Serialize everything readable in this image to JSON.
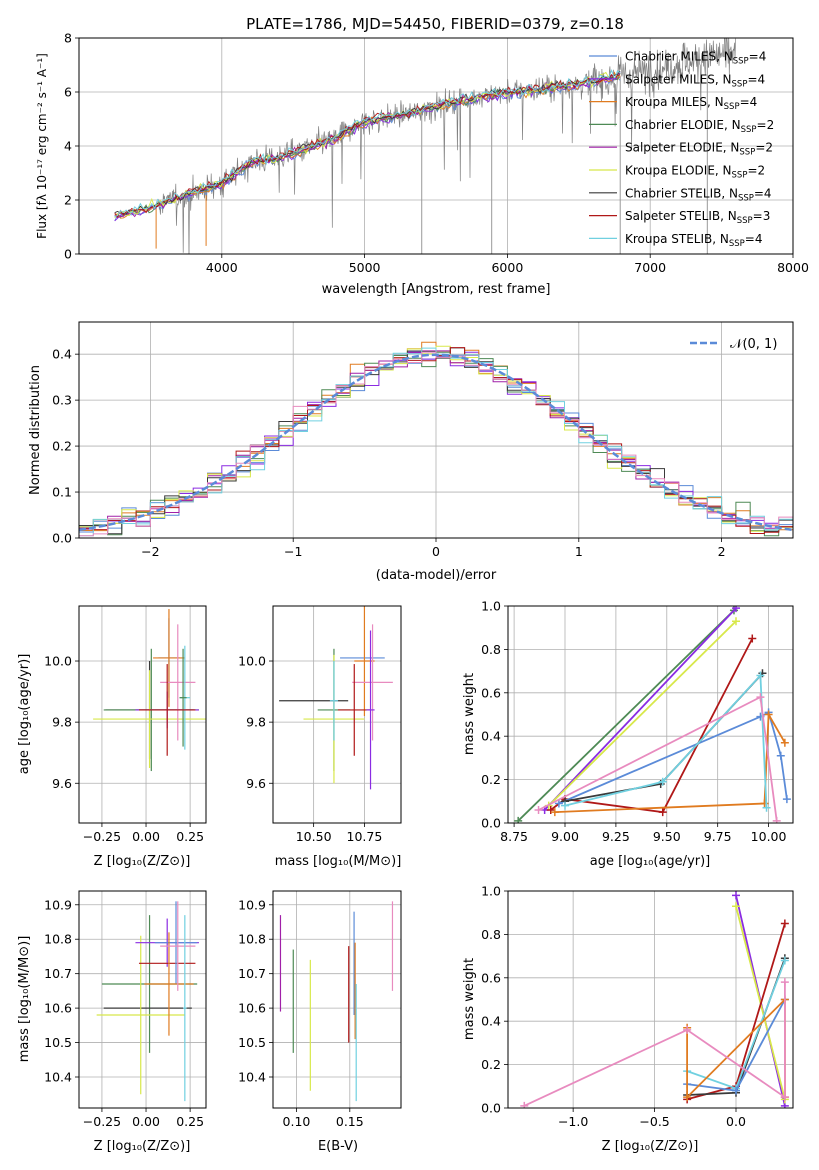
{
  "colors": {
    "miles_chabrier": "#5b8bd8",
    "miles_salpeter": "#8a2be2",
    "miles_kroupa": "#e07b20",
    "elodie_chabrier": "#4e8a55",
    "elodie_salpeter": "#a020a8",
    "elodie_kroupa": "#d8e84a",
    "stelib_chabrier": "#3a3a3a",
    "stelib_salpeter": "#b01818",
    "stelib_kroupa": "#70d0e0",
    "data_spectrum": "#808080",
    "normal": "#5b8bd8",
    "pink": "#e88bbf"
  },
  "chart_data": [
    {
      "id": "spectrum",
      "type": "line",
      "title": "PLATE=1786, MJD=54450, FIBERID=0379, z=0.18",
      "xlabel": "wavelength [Angstrom, rest frame]",
      "ylabel": "Flux [fλ 10⁻¹⁷ erg cm⁻² s⁻¹ A⁻¹]",
      "xlim": [
        3000,
        8000
      ],
      "ylim": [
        0,
        8
      ],
      "xticks": [
        "4000",
        "5000",
        "6000",
        "7000",
        "8000"
      ],
      "yticks": [
        "0",
        "2",
        "4",
        "6",
        "8"
      ],
      "legend_position": "right",
      "legend": [
        {
          "label": "Chabrier MILES, N",
          "sub": "SSP",
          "suffix": "=4",
          "color": "#5b8bd8"
        },
        {
          "label": "Salpeter MILES, N",
          "sub": "SSP",
          "suffix": "=4",
          "color": "#8a2be2"
        },
        {
          "label": "Kroupa MILES, N",
          "sub": "SSP",
          "suffix": "=4",
          "color": "#e07b20"
        },
        {
          "label": "Chabrier ELODIE, N",
          "sub": "SSP",
          "suffix": "=2",
          "color": "#4e8a55"
        },
        {
          "label": "Salpeter ELODIE, N",
          "sub": "SSP",
          "suffix": "=2",
          "color": "#a020a8"
        },
        {
          "label": "Kroupa ELODIE, N",
          "sub": "SSP",
          "suffix": "=2",
          "color": "#d8e84a"
        },
        {
          "label": "Chabrier STELIB, N",
          "sub": "SSP",
          "suffix": "=4",
          "color": "#3a3a3a"
        },
        {
          "label": "Salpeter STELIB, N",
          "sub": "SSP",
          "suffix": "=3",
          "color": "#b01818"
        },
        {
          "label": "Kroupa STELIB, N",
          "sub": "SSP",
          "suffix": "=4",
          "color": "#70d0e0"
        }
      ],
      "continuum": [
        [
          3250,
          1.4
        ],
        [
          3500,
          1.7
        ],
        [
          3800,
          2.3
        ],
        [
          4000,
          2.6
        ],
        [
          4200,
          3.4
        ],
        [
          4500,
          3.7
        ],
        [
          4800,
          4.3
        ],
        [
          5000,
          4.9
        ],
        [
          5300,
          5.2
        ],
        [
          5600,
          5.6
        ],
        [
          5900,
          5.9
        ],
        [
          6200,
          6.1
        ],
        [
          6500,
          6.3
        ],
        [
          6800,
          6.6
        ],
        [
          7100,
          6.9
        ],
        [
          7400,
          7.3
        ],
        [
          7600,
          7.5
        ]
      ]
    },
    {
      "id": "residuals",
      "type": "histogram",
      "xlabel": "(data-model)/error",
      "ylabel": "Normed distribution",
      "xlim": [
        -2.5,
        2.5
      ],
      "ylim": [
        0,
        0.47
      ],
      "xticks": [
        "−2",
        "−1",
        "0",
        "1",
        "2"
      ],
      "yticks": [
        "0.0",
        "0.1",
        "0.2",
        "0.3",
        "0.4"
      ],
      "legend_position": "top-right",
      "legend": "𝒩(0, 1)",
      "bin_width": 0.1
    },
    {
      "id": "z-age",
      "type": "errorbar",
      "xlabel": "Z [log₁₀(Z/Z⊙)]",
      "ylabel": "age  [log₁₀(age/yr)]",
      "xlim": [
        -0.38,
        0.34
      ],
      "ylim": [
        9.47,
        10.18
      ],
      "xticks": [
        "−0.25",
        "0.00",
        "0.25"
      ],
      "yticks": [
        "9.6",
        "9.8",
        "10.0"
      ],
      "points": [
        {
          "x": 0.02,
          "y": 9.84,
          "xerr": 0.25,
          "yerr": 0.16,
          "color": "#3a3a3a"
        },
        {
          "x": 0.03,
          "y": 9.84,
          "xerr": 0.27,
          "yerr": 0.2,
          "color": "#4e8a55"
        },
        {
          "x": 0.02,
          "y": 9.81,
          "xerr": 0.32,
          "yerr": 0.16,
          "color": "#d8e84a"
        },
        {
          "x": 0.13,
          "y": 10.01,
          "xerr": 0.06,
          "yerr": 0.13,
          "color": "#5b8bd8"
        },
        {
          "x": 0.13,
          "y": 10.01,
          "xerr": 0.09,
          "yerr": 0.16,
          "color": "#e07b20"
        },
        {
          "x": 0.18,
          "y": 9.93,
          "xerr": 0.1,
          "yerr": 0.19,
          "color": "#e88bbf"
        },
        {
          "x": 0.22,
          "y": 9.88,
          "xerr": 0.03,
          "yerr": 0.17,
          "color": "#70d0e0"
        },
        {
          "x": 0.21,
          "y": 9.88,
          "xerr": 0.02,
          "yerr": 0.16,
          "color": "#4e8a55"
        },
        {
          "x": 0.12,
          "y": 9.84,
          "xerr": 0.18,
          "yerr": 0.06,
          "color": "#8a2be2"
        },
        {
          "x": 0.12,
          "y": 9.84,
          "xerr": 0.16,
          "yerr": 0.15,
          "color": "#b01818"
        }
      ]
    },
    {
      "id": "mass-age",
      "type": "errorbar",
      "xlabel": "mass [log₁₀(M/M⊙)]",
      "ylabel": "",
      "xlim": [
        10.3,
        10.93
      ],
      "ylim": [
        9.47,
        10.18
      ],
      "xticks": [
        "10.50",
        "10.75"
      ],
      "yticks": [
        "9.6",
        "9.8",
        "10.0"
      ],
      "points": [
        {
          "x": 10.5,
          "y": 9.87,
          "xerr": 0.17,
          "yerr": 0.0,
          "color": "#3a3a3a"
        },
        {
          "x": 10.6,
          "y": 9.84,
          "xerr": 0.08,
          "yerr": 0.2,
          "color": "#4e8a55"
        },
        {
          "x": 10.6,
          "y": 9.81,
          "xerr": 0.15,
          "yerr": 0.21,
          "color": "#d8e84a"
        },
        {
          "x": 10.74,
          "y": 10.01,
          "xerr": 0.11,
          "yerr": 0.0,
          "color": "#5b8bd8"
        },
        {
          "x": 10.75,
          "y": 10.0,
          "xerr": 0.05,
          "yerr": 0.18,
          "color": "#e07b20"
        },
        {
          "x": 10.79,
          "y": 9.93,
          "xerr": 0.1,
          "yerr": 0.19,
          "color": "#e88bbf"
        },
        {
          "x": 10.7,
          "y": 9.84,
          "xerr": 0.08,
          "yerr": 0.15,
          "color": "#b01818"
        },
        {
          "x": 10.78,
          "y": 9.84,
          "xerr": 0.02,
          "yerr": 0.26,
          "color": "#8a2be2"
        },
        {
          "x": 10.6,
          "y": 9.87,
          "xerr": 0.02,
          "yerr": 0.13,
          "color": "#70d0e0"
        }
      ]
    },
    {
      "id": "age-weight",
      "type": "line",
      "xlabel": "age  [log₁₀(age/yr)]",
      "ylabel": "mass weight",
      "xlim": [
        8.72,
        10.12
      ],
      "ylim": [
        0,
        1
      ],
      "xticks": [
        "8.75",
        "9.00",
        "9.25",
        "9.50",
        "9.75",
        "10.00"
      ],
      "yticks": [
        "0.0",
        "0.2",
        "0.4",
        "0.6",
        "0.8",
        "1.0"
      ],
      "series": [
        {
          "color": "#4e8a55",
          "points": [
            [
              8.77,
              0.01
            ],
            [
              9.83,
              0.98
            ]
          ]
        },
        {
          "color": "#8a2be2",
          "points": [
            [
              8.9,
              0.06
            ],
            [
              9.84,
              0.99
            ]
          ]
        },
        {
          "color": "#d8e84a",
          "points": [
            [
              8.92,
              0.08
            ],
            [
              9.84,
              0.93
            ]
          ]
        },
        {
          "color": "#b01818",
          "points": [
            [
              8.93,
              0.06
            ],
            [
              9.0,
              0.11
            ],
            [
              9.48,
              0.05
            ],
            [
              9.92,
              0.85
            ]
          ]
        },
        {
          "color": "#5b8bd8",
          "points": [
            [
              8.97,
              0.09
            ],
            [
              9.96,
              0.49
            ],
            [
              10.0,
              0.51
            ],
            [
              10.06,
              0.31
            ],
            [
              10.09,
              0.11
            ]
          ]
        },
        {
          "color": "#e07b20",
          "points": [
            [
              8.95,
              0.05
            ],
            [
              9.98,
              0.09
            ],
            [
              10.0,
              0.5
            ],
            [
              10.08,
              0.37
            ]
          ]
        },
        {
          "color": "#3a3a3a",
          "points": [
            [
              9.0,
              0.1
            ],
            [
              9.47,
              0.18
            ],
            [
              9.97,
              0.69
            ]
          ]
        },
        {
          "color": "#70d0e0",
          "points": [
            [
              9.0,
              0.08
            ],
            [
              9.48,
              0.19
            ],
            [
              9.96,
              0.68
            ],
            [
              9.99,
              0.07
            ]
          ]
        },
        {
          "color": "#e88bbf",
          "points": [
            [
              8.87,
              0.06
            ],
            [
              9.96,
              0.58
            ],
            [
              10.04,
              0.01
            ]
          ]
        }
      ]
    },
    {
      "id": "z-mass",
      "type": "errorbar",
      "xlabel": "Z [log₁₀(Z/Z⊙)]",
      "ylabel": "mass [log₁₀(M/M⊙)]",
      "xlim": [
        -0.38,
        0.34
      ],
      "ylim": [
        10.31,
        10.94
      ],
      "xticks": [
        "−0.25",
        "0.00",
        "0.25"
      ],
      "yticks": [
        "10.4",
        "10.5",
        "10.6",
        "10.7",
        "10.8",
        "10.9"
      ],
      "points": [
        {
          "x": 0.02,
          "y": 10.67,
          "xerr": 0.27,
          "yerr": 0.2,
          "color": "#4e8a55"
        },
        {
          "x": 0.01,
          "y": 10.6,
          "xerr": 0.25,
          "yerr": 0.0,
          "color": "#3a3a3a"
        },
        {
          "x": -0.03,
          "y": 10.58,
          "xerr": 0.25,
          "yerr": 0.23,
          "color": "#d8e84a"
        },
        {
          "x": 0.12,
          "y": 10.79,
          "xerr": 0.18,
          "yerr": 0.07,
          "color": "#8a2be2"
        },
        {
          "x": 0.12,
          "y": 10.73,
          "xerr": 0.16,
          "yerr": 0.0,
          "color": "#b01818"
        },
        {
          "x": 0.17,
          "y": 10.79,
          "xerr": 0.12,
          "yerr": 0.12,
          "color": "#5b8bd8"
        },
        {
          "x": 0.13,
          "y": 10.67,
          "xerr": 0.14,
          "yerr": 0.15,
          "color": "#e07b20"
        },
        {
          "x": 0.18,
          "y": 10.78,
          "xerr": 0.1,
          "yerr": 0.13,
          "color": "#e88bbf"
        },
        {
          "x": 0.22,
          "y": 10.6,
          "xerr": 0.01,
          "yerr": 0.27,
          "color": "#70d0e0"
        }
      ]
    },
    {
      "id": "ebv-mass",
      "type": "errorbar",
      "xlabel": "E(B-V)",
      "ylabel": "",
      "xlim": [
        0.078,
        0.198
      ],
      "ylim": [
        10.31,
        10.94
      ],
      "xticks": [
        "0.10",
        "0.15"
      ],
      "yticks": [
        "10.4",
        "10.5",
        "10.6",
        "10.7",
        "10.8",
        "10.9"
      ],
      "points": [
        {
          "x": 0.085,
          "y": 10.73,
          "yerr": 0.14,
          "color": "#a020a8"
        },
        {
          "x": 0.097,
          "y": 10.62,
          "yerr": 0.15,
          "color": "#4e8a55"
        },
        {
          "x": 0.113,
          "y": 10.55,
          "yerr": 0.19,
          "color": "#d8e84a"
        },
        {
          "x": 0.149,
          "y": 10.64,
          "yerr": 0.14,
          "color": "#b01818"
        },
        {
          "x": 0.154,
          "y": 10.73,
          "yerr": 0.15,
          "color": "#5b8bd8"
        },
        {
          "x": 0.155,
          "y": 10.65,
          "yerr": 0.14,
          "color": "#e07b20"
        },
        {
          "x": 0.156,
          "y": 10.5,
          "yerr": 0.17,
          "color": "#70d0e0"
        },
        {
          "x": 0.19,
          "y": 10.78,
          "yerr": 0.13,
          "color": "#e88bbf"
        }
      ]
    },
    {
      "id": "z-weight",
      "type": "line",
      "xlabel": "Z [log₁₀(Z/Z⊙)]",
      "ylabel": "mass weight",
      "xlim": [
        -1.4,
        0.35
      ],
      "ylim": [
        0,
        1
      ],
      "xticks": [
        "−1.0",
        "−0.5",
        "0.0"
      ],
      "yticks": [
        "0.0",
        "0.2",
        "0.4",
        "0.6",
        "0.8",
        "1.0"
      ],
      "series": [
        {
          "color": "#8a2be2",
          "points": [
            [
              0.0,
              0.98
            ],
            [
              0.3,
              0.01
            ]
          ]
        },
        {
          "color": "#d8e84a",
          "points": [
            [
              0.0,
              0.93
            ],
            [
              0.3,
              0.04
            ]
          ]
        },
        {
          "color": "#b01818",
          "points": [
            [
              -0.3,
              0.04
            ],
            [
              0.0,
              0.1
            ],
            [
              0.3,
              0.85
            ]
          ]
        },
        {
          "color": "#3a3a3a",
          "points": [
            [
              -0.3,
              0.06
            ],
            [
              0.0,
              0.07
            ],
            [
              0.3,
              0.69
            ]
          ]
        },
        {
          "color": "#70d0e0",
          "points": [
            [
              -0.3,
              0.17
            ],
            [
              0.0,
              0.09
            ],
            [
              0.3,
              0.68
            ]
          ]
        },
        {
          "color": "#5b8bd8",
          "points": [
            [
              -0.3,
              0.11
            ],
            [
              0.0,
              0.08
            ],
            [
              0.3,
              0.5
            ]
          ]
        },
        {
          "color": "#e07b20",
          "points": [
            [
              -0.3,
              0.37
            ],
            [
              -0.3,
              0.05
            ],
            [
              0.3,
              0.5
            ],
            [
              0.3,
              0.05
            ]
          ]
        },
        {
          "color": "#e88bbf",
          "points": [
            [
              -1.3,
              0.01
            ],
            [
              -0.3,
              0.36
            ],
            [
              0.3,
              0.05
            ],
            [
              0.3,
              0.58
            ]
          ]
        }
      ]
    }
  ]
}
